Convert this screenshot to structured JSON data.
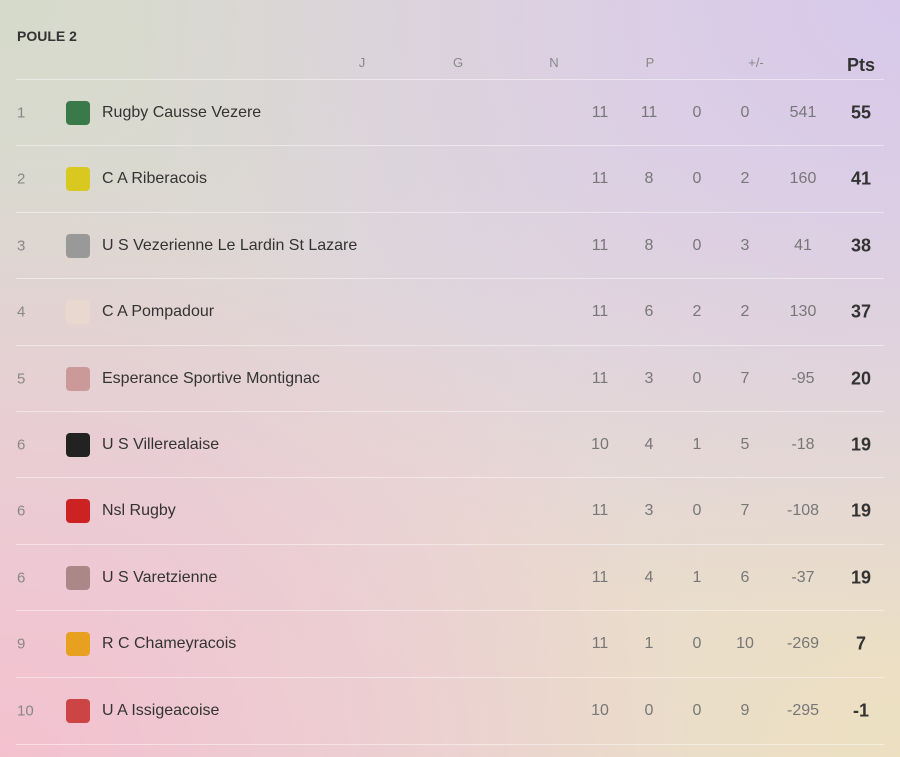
{
  "title": "POULE 2",
  "headers": [
    "J",
    "G",
    "N",
    "P",
    "+/-",
    "Pts"
  ],
  "rows": [
    [
      1,
      "Rugby Causse Vezere",
      11,
      11,
      0,
      0,
      541,
      55
    ],
    [
      2,
      "C A Riberacois",
      11,
      8,
      0,
      2,
      160,
      41
    ],
    [
      3,
      "U S Vezerienne Le Lardin St Lazare",
      11,
      8,
      0,
      3,
      41,
      38
    ],
    [
      4,
      "C A Pompadour",
      11,
      6,
      2,
      2,
      130,
      37
    ],
    [
      5,
      "Esperance Sportive Montignac",
      11,
      3,
      0,
      7,
      -95,
      20
    ],
    [
      6,
      "U S Villerealaise",
      10,
      4,
      1,
      5,
      -18,
      19
    ],
    [
      6,
      "Nsl Rugby",
      11,
      3,
      0,
      7,
      -108,
      19
    ],
    [
      6,
      "U S Varetzienne",
      11,
      4,
      1,
      6,
      -37,
      19
    ],
    [
      9,
      "R C Chameyracois",
      11,
      1,
      0,
      10,
      -269,
      7
    ],
    [
      10,
      "U A Issigeacoise",
      10,
      0,
      0,
      9,
      -295,
      -1
    ]
  ]
}
